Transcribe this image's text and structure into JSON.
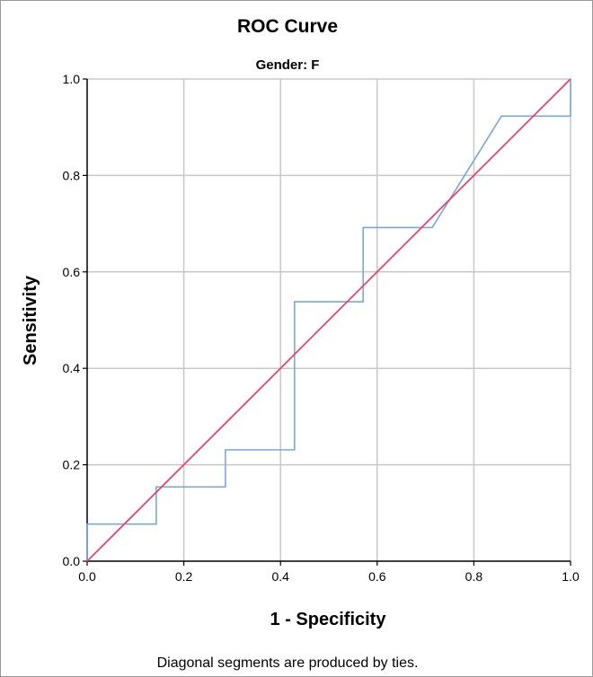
{
  "chart_data": {
    "type": "line",
    "title": "ROC Curve",
    "subtitle": "Gender: F",
    "xlabel": "1 - Specificity",
    "ylabel": "Sensitivity",
    "xlim": [
      0,
      1
    ],
    "ylim": [
      0,
      1
    ],
    "x_ticks": [
      "0.0",
      "0.2",
      "0.4",
      "0.6",
      "0.8",
      "1.0"
    ],
    "y_ticks": [
      "0.0",
      "0.2",
      "0.4",
      "0.6",
      "0.8",
      "1.0"
    ],
    "grid": true,
    "series": [
      {
        "color": "#78a8dc",
        "x": [
          0.0,
          0.0,
          0.143,
          0.143,
          0.286,
          0.286,
          0.429,
          0.429,
          0.571,
          0.571,
          0.714,
          0.857,
          1.0,
          1.0
        ],
        "y": [
          0.0,
          0.077,
          0.077,
          0.154,
          0.154,
          0.231,
          0.231,
          0.538,
          0.538,
          0.692,
          0.692,
          0.923,
          0.923,
          1.0
        ]
      },
      {
        "color": "#e8456e",
        "x": [
          0.0,
          1.0
        ],
        "y": [
          0.0,
          1.0
        ]
      }
    ],
    "footnote": "Diagonal segments are produced by ties."
  },
  "colors": {
    "grid": "#c8c8c8",
    "axis": "#000000",
    "frame": "#9a9a9a"
  }
}
